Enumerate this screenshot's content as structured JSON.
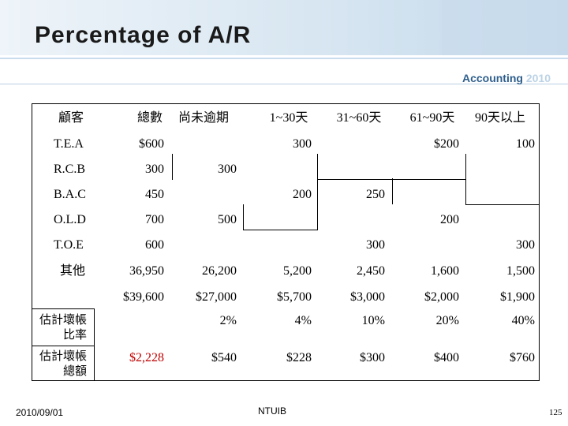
{
  "header": {
    "title": "Percentage of A/R",
    "subtitle_a": "Accounting",
    "subtitle_b": "2010"
  },
  "table": {
    "headers": [
      "顧客",
      "總數",
      "尚未逾期",
      "1~30天",
      "31~60天",
      "61~90天",
      "90天以上"
    ],
    "rows": [
      [
        "T.E.A",
        "$600",
        "",
        "300",
        "",
        "$200",
        "100"
      ],
      [
        "R.C.B",
        "300",
        "300",
        "",
        "",
        "",
        ""
      ],
      [
        "B.A.C",
        "450",
        "",
        "200",
        "250",
        "",
        ""
      ],
      [
        "O.L.D",
        "700",
        "500",
        "",
        "",
        "200",
        ""
      ],
      [
        "T.O.E",
        "600",
        "",
        "",
        "300",
        "",
        "300"
      ],
      [
        "其他",
        "36,950",
        "26,200",
        "5,200",
        "2,450",
        "1,600",
        "1,500"
      ],
      [
        "",
        "$39,600",
        "$27,000",
        "$5,700",
        "$3,000",
        "$2,000",
        "$1,900"
      ]
    ],
    "rate_label_1": "估計壞帳",
    "rate_label_2": "比率",
    "rates": [
      "",
      "2%",
      "4%",
      "10%",
      "20%",
      "40%"
    ],
    "amount_label_1": "估計壞帳",
    "amount_label_2": "總額",
    "amounts": [
      "$2,228",
      "$540",
      "$228",
      "$300",
      "$400",
      "$760"
    ],
    "accent_color": "#c00000"
  },
  "footer": {
    "date": "2010/09/01",
    "center": "NTUIB",
    "page": "125"
  }
}
